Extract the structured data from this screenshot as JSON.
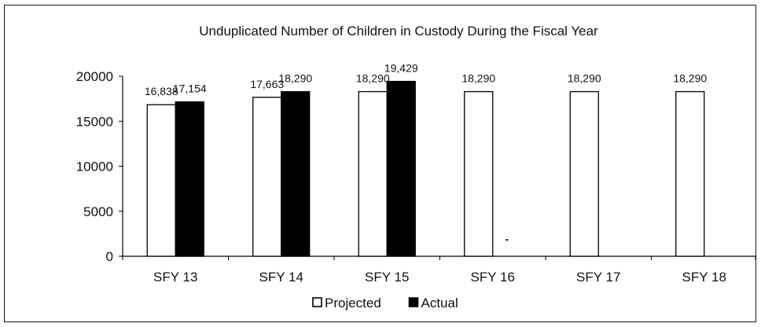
{
  "chart_data": {
    "type": "bar",
    "title": "Unduplicated Number of Children in Custody During the Fiscal Year",
    "categories": [
      "SFY 13",
      "SFY 14",
      "SFY 15",
      "SFY 16",
      "SFY 17",
      "SFY 18"
    ],
    "series": [
      {
        "name": "Projected",
        "values": [
          16838,
          17663,
          18290,
          18290,
          18290,
          18290
        ],
        "labels": [
          "16,838",
          "17,663",
          "18,290",
          "18,290",
          "18,290",
          "18,290"
        ],
        "fill": "#ffffff",
        "stroke": "#000000"
      },
      {
        "name": "Actual",
        "values": [
          17154,
          18290,
          19429,
          null,
          null,
          null
        ],
        "labels": [
          "17,154",
          "18,290",
          "19,429",
          "-",
          "",
          ""
        ],
        "fill": "#000000",
        "stroke": "#000000"
      }
    ],
    "yticks": [
      "0",
      "5000",
      "10000",
      "15000",
      "20000"
    ],
    "ylim": [
      0,
      20000
    ],
    "grid": false,
    "legend_position": "bottom"
  }
}
